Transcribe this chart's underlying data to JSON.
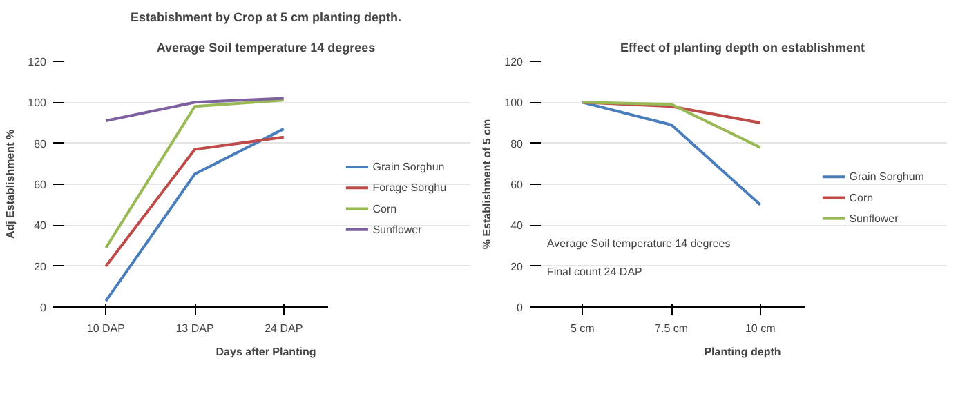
{
  "chart_data": [
    {
      "type": "line",
      "title": "Estabishment by Crop at 5 cm planting depth.",
      "subtitle": "Average Soil temperature 14 degrees",
      "xlabel": "Days after Planting",
      "ylabel": "Adj Establishment %",
      "categories": [
        "10 DAP",
        "13 DAP",
        "24 DAP"
      ],
      "ylim": [
        0,
        120
      ],
      "yticks": [
        0,
        20,
        40,
        60,
        80,
        100,
        120
      ],
      "grid": "y",
      "legend": "right",
      "marker": "none",
      "line_style": "solid",
      "series": [
        {
          "name": "Grain Sorghun",
          "color": "#4a7ebb",
          "values": [
            3,
            65,
            87
          ]
        },
        {
          "name": "Forage Sorghu",
          "color": "#be4b48",
          "values": [
            20,
            77,
            83
          ]
        },
        {
          "name": "Corn",
          "color": "#98b954",
          "values": [
            29,
            98,
            101
          ]
        },
        {
          "name": "Sunflower",
          "color": "#7d60a0",
          "values": [
            91,
            100,
            102
          ]
        }
      ]
    },
    {
      "type": "line",
      "title": "Effect of planting depth on establishment",
      "xlabel": "Planting depth",
      "ylabel": "% Establishment of 5 cm",
      "categories": [
        "5 cm",
        "7.5 cm",
        "10 cm"
      ],
      "ylim": [
        0,
        120
      ],
      "yticks": [
        0,
        20,
        40,
        60,
        80,
        100,
        120
      ],
      "grid": "y",
      "legend": "right",
      "marker": "none",
      "line_style": "solid",
      "annotations": [
        "Average Soil temperature 14 degrees",
        "Final count 24 DAP"
      ],
      "series": [
        {
          "name": "Grain Sorghum",
          "color": "#4a7ebb",
          "values": [
            100,
            89,
            50
          ]
        },
        {
          "name": "Corn",
          "color": "#be4b48",
          "values": [
            100,
            98,
            90
          ]
        },
        {
          "name": "Sunflower",
          "color": "#98b954",
          "values": [
            100,
            99,
            78
          ]
        }
      ]
    }
  ]
}
